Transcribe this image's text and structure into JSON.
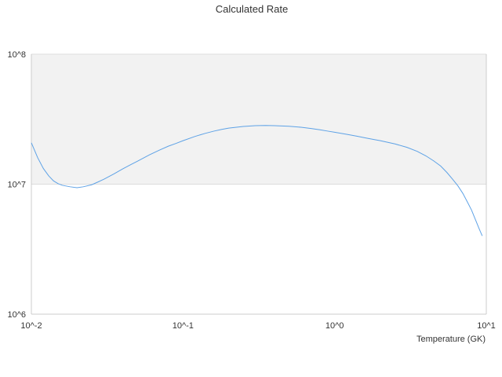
{
  "chart_data": {
    "type": "line",
    "title": "Calculated Rate",
    "xlabel": "Temperature (GK)",
    "ylabel": "",
    "x_scale": "log",
    "y_scale": "log",
    "xlim": [
      0.01,
      10
    ],
    "ylim": [
      1000000,
      100000000
    ],
    "x_ticks": [
      {
        "value": 0.01,
        "label": "10^-2"
      },
      {
        "value": 0.1,
        "label": "10^-1"
      },
      {
        "value": 1,
        "label": "10^0"
      },
      {
        "value": 10,
        "label": "10^1"
      }
    ],
    "y_ticks": [
      {
        "value": 1000000,
        "label": "10^6"
      },
      {
        "value": 10000000,
        "label": "10^7"
      },
      {
        "value": 100000000,
        "label": "10^8"
      }
    ],
    "grid": true,
    "legend": "none",
    "colors": {
      "line": "#5ea2e6",
      "band": "#f2f2f2",
      "grid": "#dddddd",
      "axis": "#cccccc"
    },
    "series": [
      {
        "x": [
          0.01,
          0.011,
          0.012,
          0.013,
          0.014,
          0.015,
          0.016,
          0.018,
          0.02,
          0.022,
          0.025,
          0.028,
          0.03,
          0.035,
          0.04,
          0.045,
          0.05,
          0.06,
          0.07,
          0.08,
          0.09,
          0.1,
          0.12,
          0.14,
          0.16,
          0.18,
          0.2,
          0.25,
          0.3,
          0.35,
          0.4,
          0.5,
          0.6,
          0.7,
          0.8,
          0.9,
          1.0,
          1.2,
          1.4,
          1.6,
          1.8,
          2.0,
          2.5,
          3.0,
          3.5,
          4.0,
          4.5,
          5.0,
          5.5,
          6.0,
          6.5,
          7.0,
          7.5,
          8.0,
          8.5,
          9.0,
          9.4
        ],
        "y": [
          20800000,
          16000000,
          13200000,
          11600000,
          10600000,
          10100000,
          9800000,
          9550000,
          9400000,
          9550000,
          9900000,
          10500000,
          10900000,
          12000000,
          13100000,
          14100000,
          15000000,
          16800000,
          18300000,
          19600000,
          20600000,
          21600000,
          23300000,
          24600000,
          25600000,
          26400000,
          27000000,
          27800000,
          28200000,
          28300000,
          28200000,
          27900000,
          27400000,
          26800000,
          26200000,
          25600000,
          25100000,
          24200000,
          23400000,
          22700000,
          22100000,
          21600000,
          20400000,
          19200000,
          17900000,
          16500000,
          15100000,
          13800000,
          12300000,
          10900000,
          9700000,
          8500000,
          7300000,
          6300000,
          5300000,
          4500000,
          4000000
        ]
      }
    ]
  }
}
